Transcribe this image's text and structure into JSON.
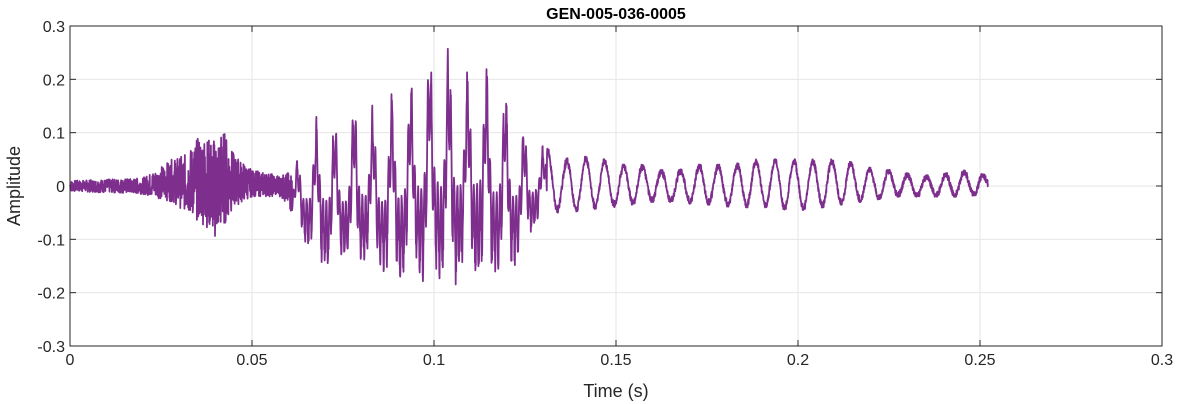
{
  "chart_data": {
    "type": "line",
    "title": "GEN-005-036-0005",
    "xlabel": "Time (s)",
    "ylabel": "Amplitude",
    "xlim": [
      0,
      0.3
    ],
    "ylim": [
      -0.3,
      0.3
    ],
    "xticks": [
      0,
      0.05,
      0.1,
      0.15,
      0.2,
      0.25,
      0.3
    ],
    "xtick_labels": [
      "0",
      "0.05",
      "0.1",
      "0.15",
      "0.2",
      "0.25",
      "0.3"
    ],
    "yticks": [
      -0.3,
      -0.2,
      -0.1,
      0,
      0.1,
      0.2,
      0.3
    ],
    "ytick_labels": [
      "-0.3",
      "-0.2",
      "-0.1",
      "0",
      "0.1",
      "0.2",
      "0.3"
    ],
    "grid": true,
    "series": [
      {
        "color": "#7E2F8E",
        "x": [
          0,
          0.02,
          0.028,
          0.032,
          0.036,
          0.038,
          0.04,
          0.042,
          0.045,
          0.05,
          0.058,
          0.0615,
          0.063,
          0.0665,
          0.0705,
          0.0745,
          0.079,
          0.084,
          0.0885,
          0.0935,
          0.0985,
          0.1005,
          0.1035,
          0.1055,
          0.1085,
          0.1125,
          0.1155,
          0.1185,
          0.1225,
          0.126,
          0.1295,
          0.133,
          0.1355,
          0.1385,
          0.142,
          0.147,
          0.152,
          0.157,
          0.162,
          0.167,
          0.172,
          0.177,
          0.182,
          0.187,
          0.192,
          0.197,
          0.202,
          0.207,
          0.212,
          0.217,
          0.222,
          0.227,
          0.232,
          0.238,
          0.245,
          0.2522
        ],
        "y_max": [
          0.01,
          0.015,
          0.05,
          0.06,
          0.1,
          0.09,
          0.09,
          0.11,
          0.06,
          0.03,
          0.02,
          0.03,
          0.07,
          0.12,
          0.17,
          0.12,
          0.19,
          0.15,
          0.2,
          0.21,
          0.28,
          0.27,
          0.29,
          0.27,
          0.23,
          0.28,
          0.22,
          0.21,
          0.16,
          0.1,
          0.08,
          0.06,
          0.05,
          0.055,
          0.055,
          0.05,
          0.04,
          0.04,
          0.03,
          0.03,
          0.04,
          0.04,
          0.04,
          0.05,
          0.05,
          0.05,
          0.05,
          0.05,
          0.05,
          0.04,
          0.03,
          0.03,
          0.02,
          0.02,
          0.03,
          0.02
        ],
        "y_min": [
          -0.01,
          -0.015,
          -0.03,
          -0.05,
          -0.07,
          -0.08,
          -0.1,
          -0.08,
          -0.04,
          -0.02,
          -0.02,
          -0.06,
          -0.09,
          -0.13,
          -0.17,
          -0.14,
          -0.16,
          -0.15,
          -0.19,
          -0.17,
          -0.19,
          -0.18,
          -0.21,
          -0.19,
          -0.17,
          -0.19,
          -0.18,
          -0.17,
          -0.15,
          -0.1,
          -0.06,
          -0.05,
          -0.05,
          -0.05,
          -0.045,
          -0.04,
          -0.04,
          -0.03,
          -0.03,
          -0.03,
          -0.035,
          -0.035,
          -0.04,
          -0.04,
          -0.04,
          -0.045,
          -0.045,
          -0.04,
          -0.035,
          -0.03,
          -0.025,
          -0.02,
          -0.02,
          -0.02,
          -0.02,
          -0.015
        ]
      }
    ]
  }
}
